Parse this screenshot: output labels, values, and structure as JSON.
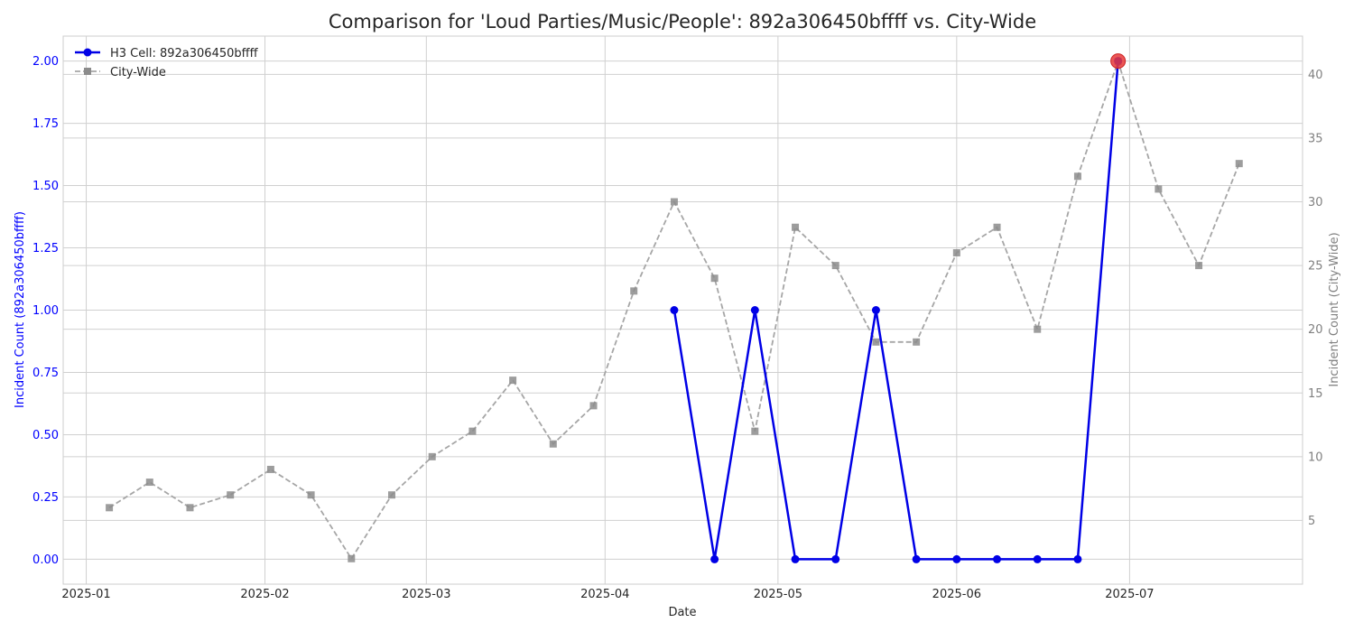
{
  "chart_data": {
    "type": "line",
    "title": "Comparison for 'Loud Parties/Music/People': 892a306450bffff vs. City-Wide",
    "xlabel": "Date",
    "ylabel_left": "Incident Count (892a306450bffff)",
    "ylabel_right": "Incident Count (City-Wide)",
    "x_ticks": [
      "2025-01",
      "2025-02",
      "2025-03",
      "2025-04",
      "2025-05",
      "2025-06",
      "2025-07"
    ],
    "xlim": [
      "2024-12-28",
      "2025-07-31"
    ],
    "ylim_left": [
      -0.1,
      2.1
    ],
    "ylim_right": [
      0,
      43
    ],
    "y_ticks_left": [
      "0.00",
      "0.25",
      "0.50",
      "0.75",
      "1.00",
      "1.25",
      "1.50",
      "1.75",
      "2.00"
    ],
    "y_ticks_right": [
      "5",
      "10",
      "15",
      "20",
      "25",
      "30",
      "35",
      "40"
    ],
    "grid": true,
    "legend_position": "top-left",
    "colors": {
      "cell": "#0000e6",
      "city": "#8c8c8c",
      "highlight": "#e83a3a",
      "left_axis_text": "#0000ff",
      "right_axis_text": "#808080"
    },
    "series": [
      {
        "name": "H3 Cell: 892a306450bffff",
        "axis": "left",
        "x": [
          "2025-04-13",
          "2025-04-20",
          "2025-04-27",
          "2025-05-04",
          "2025-05-11",
          "2025-05-18",
          "2025-05-25",
          "2025-06-01",
          "2025-06-08",
          "2025-06-15",
          "2025-06-22",
          "2025-06-29"
        ],
        "values": [
          1,
          0,
          1,
          0,
          0,
          1,
          0,
          0,
          0,
          0,
          0,
          2
        ]
      },
      {
        "name": "City-Wide",
        "axis": "right",
        "x": [
          "2025-01-05",
          "2025-01-12",
          "2025-01-19",
          "2025-01-26",
          "2025-02-02",
          "2025-02-09",
          "2025-02-16",
          "2025-02-23",
          "2025-03-02",
          "2025-03-09",
          "2025-03-16",
          "2025-03-23",
          "2025-03-30",
          "2025-04-06",
          "2025-04-13",
          "2025-04-20",
          "2025-04-27",
          "2025-05-04",
          "2025-05-11",
          "2025-05-18",
          "2025-05-25",
          "2025-06-01",
          "2025-06-08",
          "2025-06-15",
          "2025-06-22",
          "2025-06-29",
          "2025-07-06",
          "2025-07-13",
          "2025-07-20"
        ],
        "values": [
          6,
          8,
          6,
          7,
          9,
          7,
          2,
          7,
          10,
          12,
          16,
          11,
          14,
          23,
          30,
          24,
          12,
          28,
          25,
          19,
          19,
          26,
          28,
          20,
          32,
          41,
          31,
          25,
          33
        ]
      }
    ],
    "annotations": [
      {
        "series": "H3 Cell: 892a306450bffff",
        "x": "2025-06-29",
        "value": 2,
        "kind": "highlighted-max-point"
      }
    ]
  }
}
